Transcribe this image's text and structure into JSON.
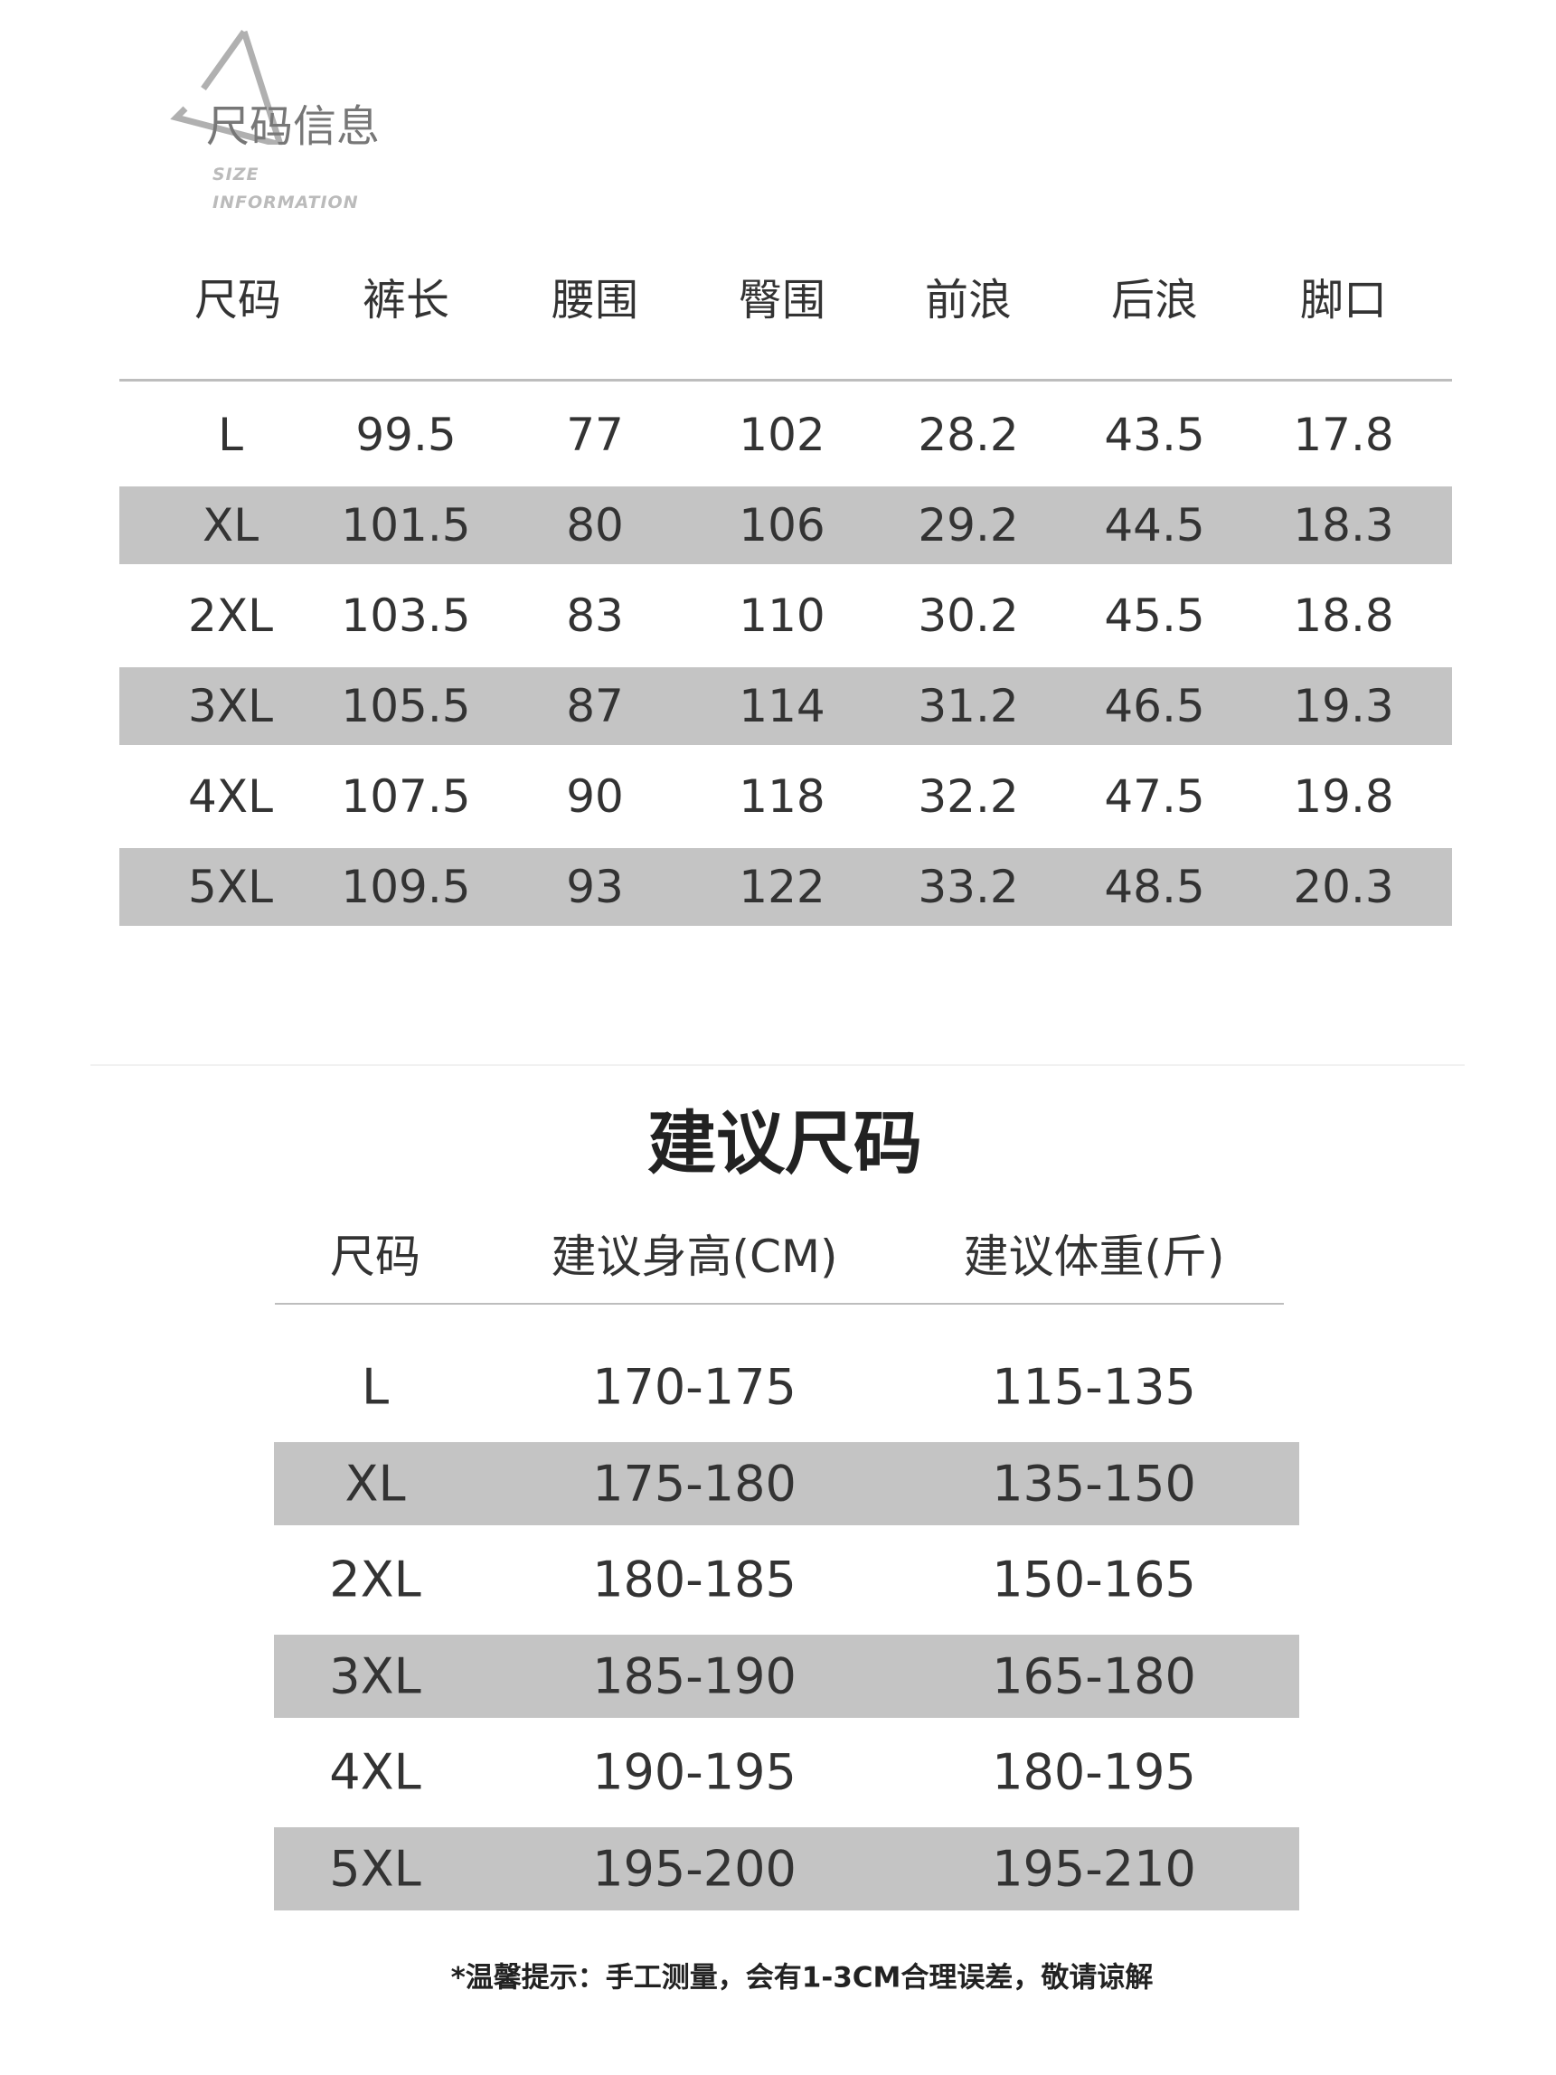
{
  "logo": {
    "title": "尺码信息",
    "subtitle_line1": "SIZE",
    "subtitle_line2": "INFORMATION",
    "icon": "triangle-outline-icon"
  },
  "size_table": {
    "headers": [
      "尺码",
      "裤长",
      "腰围",
      "臀围",
      "前浪",
      "后浪",
      "脚口"
    ],
    "rows": [
      [
        "L",
        "99.5",
        "77",
        "102",
        "28.2",
        "43.5",
        "17.8"
      ],
      [
        "XL",
        "101.5",
        "80",
        "106",
        "29.2",
        "44.5",
        "18.3"
      ],
      [
        "2XL",
        "103.5",
        "83",
        "110",
        "30.2",
        "45.5",
        "18.8"
      ],
      [
        "3XL",
        "105.5",
        "87",
        "114",
        "31.2",
        "46.5",
        "19.3"
      ],
      [
        "4XL",
        "107.5",
        "90",
        "118",
        "32.2",
        "47.5",
        "19.8"
      ],
      [
        "5XL",
        "109.5",
        "93",
        "122",
        "33.2",
        "48.5",
        "20.3"
      ]
    ]
  },
  "recommend": {
    "title": "建议尺码",
    "headers": [
      "尺码",
      "建议身高(CM)",
      "建议体重(斤)"
    ],
    "rows": [
      [
        "L",
        "170-175",
        "115-135"
      ],
      [
        "XL",
        "175-180",
        "135-150"
      ],
      [
        "2XL",
        "180-185",
        "150-165"
      ],
      [
        "3XL",
        "185-190",
        "165-180"
      ],
      [
        "4XL",
        "190-195",
        "180-195"
      ],
      [
        "5XL",
        "195-200",
        "195-210"
      ]
    ]
  },
  "note": "*温馨提示：手工测量，会有1-3CM合理误差，敬请谅解",
  "colors": {
    "band": "#c4c4c4",
    "text": "#333333"
  }
}
